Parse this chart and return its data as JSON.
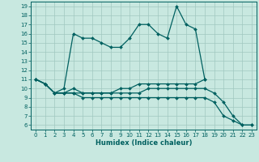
{
  "xlabel": "Humidex (Indice chaleur)",
  "bg_color": "#c8e8e0",
  "line_color": "#006060",
  "grid_color": "#a0c8c0",
  "ylim": [
    5.5,
    19.5
  ],
  "xlim": [
    -0.5,
    23.5
  ],
  "yticks": [
    6,
    7,
    8,
    9,
    10,
    11,
    12,
    13,
    14,
    15,
    16,
    17,
    18,
    19
  ],
  "xticks": [
    0,
    1,
    2,
    3,
    4,
    5,
    6,
    7,
    8,
    9,
    10,
    11,
    12,
    13,
    14,
    15,
    16,
    17,
    18,
    19,
    20,
    21,
    22,
    23
  ],
  "lines": [
    {
      "x": [
        0,
        1,
        2,
        3,
        4,
        5,
        6,
        7,
        8,
        9,
        10,
        11,
        12,
        13,
        14,
        15,
        16,
        17,
        18
      ],
      "y": [
        11.0,
        10.5,
        9.5,
        10.0,
        16.0,
        15.5,
        15.5,
        15.0,
        14.5,
        14.5,
        15.5,
        17.0,
        17.0,
        16.0,
        15.5,
        19.0,
        17.0,
        16.5,
        11.0
      ]
    },
    {
      "x": [
        0,
        1,
        2,
        3,
        4,
        5,
        6,
        7,
        8,
        9,
        10,
        11,
        12,
        13,
        14,
        15,
        16,
        17,
        18
      ],
      "y": [
        11.0,
        10.5,
        9.5,
        9.5,
        10.0,
        9.5,
        9.5,
        9.5,
        9.5,
        10.0,
        10.0,
        10.5,
        10.5,
        10.5,
        10.5,
        10.5,
        10.5,
        10.5,
        11.0
      ]
    },
    {
      "x": [
        0,
        1,
        2,
        3,
        4,
        5,
        6,
        7,
        8,
        9,
        10,
        11,
        12,
        13,
        14,
        15,
        16,
        17,
        18,
        19,
        20,
        21,
        22,
        23
      ],
      "y": [
        11.0,
        10.5,
        9.5,
        9.5,
        9.5,
        9.0,
        9.0,
        9.0,
        9.0,
        9.0,
        9.0,
        9.0,
        9.0,
        9.0,
        9.0,
        9.0,
        9.0,
        9.0,
        9.0,
        8.5,
        7.0,
        6.5,
        6.0,
        6.0
      ]
    },
    {
      "x": [
        0,
        1,
        2,
        3,
        4,
        5,
        6,
        7,
        8,
        9,
        10,
        11,
        12,
        13,
        14,
        15,
        16,
        17,
        18,
        19,
        20,
        21,
        22,
        23
      ],
      "y": [
        11.0,
        10.5,
        9.5,
        9.5,
        9.5,
        9.5,
        9.5,
        9.5,
        9.5,
        9.5,
        9.5,
        9.5,
        10.0,
        10.0,
        10.0,
        10.0,
        10.0,
        10.0,
        10.0,
        9.5,
        8.5,
        7.0,
        6.0,
        6.0
      ]
    }
  ]
}
